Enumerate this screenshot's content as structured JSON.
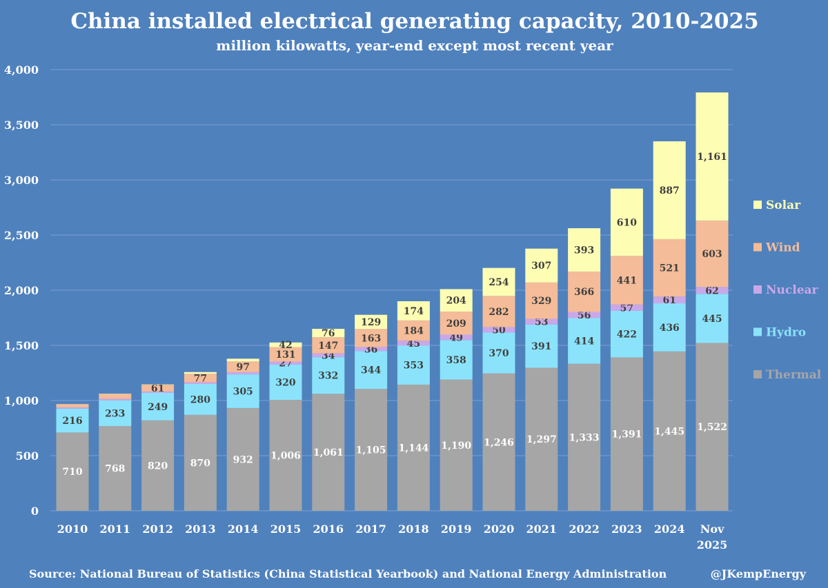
{
  "chart_data": {
    "type": "bar",
    "stacked": true,
    "title": "China installed electrical generating capacity, 2010-2025",
    "subtitle": "million kilowatts, year-end except most recent year",
    "xlabel": "",
    "ylabel": "",
    "ylim": [
      0,
      4000
    ],
    "yticks": [
      0,
      500,
      1000,
      1500,
      2000,
      2500,
      3000,
      3500,
      4000
    ],
    "ytick_labels": [
      "0",
      "500",
      "1,000",
      "1,500",
      "2,000",
      "2,500",
      "3,000",
      "3,500",
      "4,000"
    ],
    "grid": true,
    "legend_position": "right",
    "categories": [
      "2010",
      "2011",
      "2012",
      "2013",
      "2014",
      "2015",
      "2016",
      "2017",
      "2018",
      "2019",
      "2020",
      "2021",
      "2022",
      "2023",
      "2024",
      "Nov\n2025"
    ],
    "series": [
      {
        "name": "Thermal",
        "color": "#a6a6a6",
        "label_color": "#ffffff",
        "values": [
          710,
          768,
          820,
          870,
          932,
          1006,
          1061,
          1105,
          1144,
          1190,
          1246,
          1297,
          1333,
          1391,
          1445,
          1522
        ],
        "labels": [
          "710",
          "768",
          "820",
          "870",
          "932",
          "1,006",
          "1,061",
          "1,105",
          "1,144",
          "1,190",
          "1,246",
          "1,297",
          "1,333",
          "1,391",
          "1,445",
          "1,522"
        ]
      },
      {
        "name": "Hydro",
        "color": "#8be3fb",
        "label_color": "#404040",
        "values": [
          216,
          233,
          249,
          280,
          305,
          320,
          332,
          344,
          353,
          358,
          370,
          391,
          414,
          422,
          436,
          445
        ],
        "labels": [
          "216",
          "233",
          "249",
          "280",
          "305",
          "320",
          "332",
          "344",
          "353",
          "358",
          "370",
          "391",
          "414",
          "422",
          "436",
          "445"
        ]
      },
      {
        "name": "Nuclear",
        "color": "#c9a8e8",
        "label_color": "#404040",
        "values": [
          11,
          13,
          13,
          15,
          20,
          27,
          34,
          36,
          45,
          49,
          50,
          53,
          56,
          57,
          61,
          62
        ],
        "labels": [
          "",
          "",
          "",
          "",
          "",
          "27",
          "34",
          "36",
          "45",
          "49",
          "50",
          "53",
          "56",
          "57",
          "61",
          "62"
        ]
      },
      {
        "name": "Wind",
        "color": "#f4bc98",
        "label_color": "#404040",
        "values": [
          30,
          46,
          61,
          77,
          97,
          131,
          147,
          163,
          184,
          209,
          282,
          329,
          366,
          441,
          521,
          603
        ],
        "labels": [
          "",
          "",
          "61",
          "77",
          "97",
          "131",
          "147",
          "163",
          "184",
          "209",
          "282",
          "329",
          "366",
          "441",
          "521",
          "603"
        ]
      },
      {
        "name": "Solar",
        "color": "#fdfdb4",
        "label_color": "#404040",
        "values": [
          1,
          2,
          3,
          16,
          25,
          42,
          76,
          129,
          174,
          204,
          254,
          307,
          393,
          610,
          887,
          1161
        ],
        "labels": [
          "",
          "",
          "",
          "",
          "",
          "42",
          "76",
          "129",
          "174",
          "204",
          "254",
          "307",
          "393",
          "610",
          "887",
          "1,161"
        ]
      }
    ],
    "source": "Source: National Bureau of Statistics (China Statistical Yearbook) and National Energy Administration",
    "credit": "@JKempEnergy"
  }
}
